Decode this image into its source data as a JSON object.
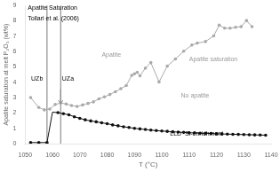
{
  "chart_data": {
    "type": "line",
    "xlabel": "T (°C)",
    "ylabel": "Apatite saturation at melt P₂O₅ (wt%)",
    "xlim": [
      1050,
      1140
    ],
    "ylim": [
      0,
      9
    ],
    "xticks": [
      1050,
      1060,
      1070,
      1080,
      1090,
      1100,
      1110,
      1120,
      1130,
      1140
    ],
    "yticks": [
      0,
      1,
      2,
      3,
      4,
      5,
      6,
      7,
      8,
      9
    ],
    "grid": false,
    "series": [
      {
        "color": "#aaaaaa",
        "marker": "circle",
        "x": [
          1052,
          1055,
          1057,
          1059,
          1061,
          1063,
          1065,
          1067,
          1069,
          1071,
          1073,
          1075,
          1077,
          1079,
          1081,
          1083,
          1085,
          1087,
          1089,
          1090,
          1091,
          1092,
          1094,
          1096,
          1099,
          1102,
          1105,
          1108,
          1111,
          1113,
          1116,
          1119,
          1121,
          1123,
          1125,
          1127,
          1129,
          1131,
          1133
        ],
        "values": [
          3.0,
          2.35,
          2.2,
          2.25,
          2.55,
          2.65,
          2.58,
          2.48,
          2.42,
          2.52,
          2.62,
          2.72,
          2.92,
          3.05,
          3.2,
          3.38,
          3.58,
          3.78,
          4.45,
          4.55,
          4.65,
          4.42,
          4.92,
          5.28,
          4.02,
          5.05,
          5.52,
          6.02,
          6.42,
          6.55,
          6.65,
          7.02,
          7.72,
          7.52,
          7.52,
          7.58,
          7.62,
          8.02,
          7.62
        ]
      },
      {
        "color": "#111111",
        "marker": "circle",
        "x": [
          1052,
          1055,
          1058
        ],
        "values": [
          0.07,
          0.07,
          0.07
        ]
      },
      {
        "color": "#111111",
        "marker": "none",
        "x": [
          1058,
          1060,
          1062
        ],
        "values": [
          0.07,
          2.05,
          2.02
        ]
      },
      {
        "color": "#111111",
        "marker": "circle",
        "x": [
          1062,
          1064,
          1066,
          1068,
          1070,
          1072,
          1074,
          1076,
          1078,
          1080,
          1082,
          1084,
          1086,
          1088,
          1090,
          1092,
          1094,
          1096,
          1098,
          1100,
          1102,
          1104,
          1106,
          1108,
          1110,
          1112,
          1114,
          1116,
          1118,
          1120,
          1122,
          1124,
          1126,
          1128,
          1130,
          1132,
          1134,
          1136,
          1138
        ],
        "values": [
          2.02,
          1.95,
          1.88,
          1.75,
          1.65,
          1.55,
          1.48,
          1.42,
          1.36,
          1.3,
          1.22,
          1.16,
          1.1,
          1.05,
          1.0,
          0.96,
          0.92,
          0.88,
          0.85,
          0.82,
          0.8,
          0.77,
          0.75,
          0.73,
          0.71,
          0.7,
          0.68,
          0.67,
          0.66,
          0.64,
          0.63,
          0.62,
          0.61,
          0.6,
          0.59,
          0.58,
          0.57,
          0.56,
          0.55
        ]
      }
    ],
    "vlines": [
      {
        "x": 1058,
        "color": "#555555"
      },
      {
        "x": 1063,
        "color": "#555555"
      }
    ],
    "arrows": [
      {
        "x": 1063,
        "y_start": 3.55,
        "y_end": 2.62,
        "color": "#888888"
      }
    ],
    "annotations": [
      {
        "text": "Apatite Saturation",
        "x": 1051,
        "y": 8.85,
        "align": "left",
        "color": "#000000"
      },
      {
        "text": "Tollari et al. (2006)",
        "x": 1051,
        "y": 8.15,
        "align": "left",
        "color": "#000000"
      },
      {
        "text": "UZb",
        "x": 1056.5,
        "y": 4.2,
        "align": "right",
        "color": "#000000"
      },
      {
        "text": "UZa",
        "x": 1063.5,
        "y": 4.2,
        "align": "left",
        "color": "#000000"
      },
      {
        "text": "Apatite",
        "x": 1078,
        "y": 5.8,
        "align": "left",
        "color": "#999999"
      },
      {
        "text": "No apatite",
        "x": 1107,
        "y": 3.1,
        "align": "left",
        "color": "#999999"
      },
      {
        "text": "Apatite saturation",
        "x": 1110,
        "y": 5.5,
        "align": "left",
        "color": "#999999"
      },
      {
        "text": "LLD  Si-enrichment",
        "x": 1103,
        "y": 0.62,
        "align": "left",
        "color": "#000000"
      }
    ]
  }
}
